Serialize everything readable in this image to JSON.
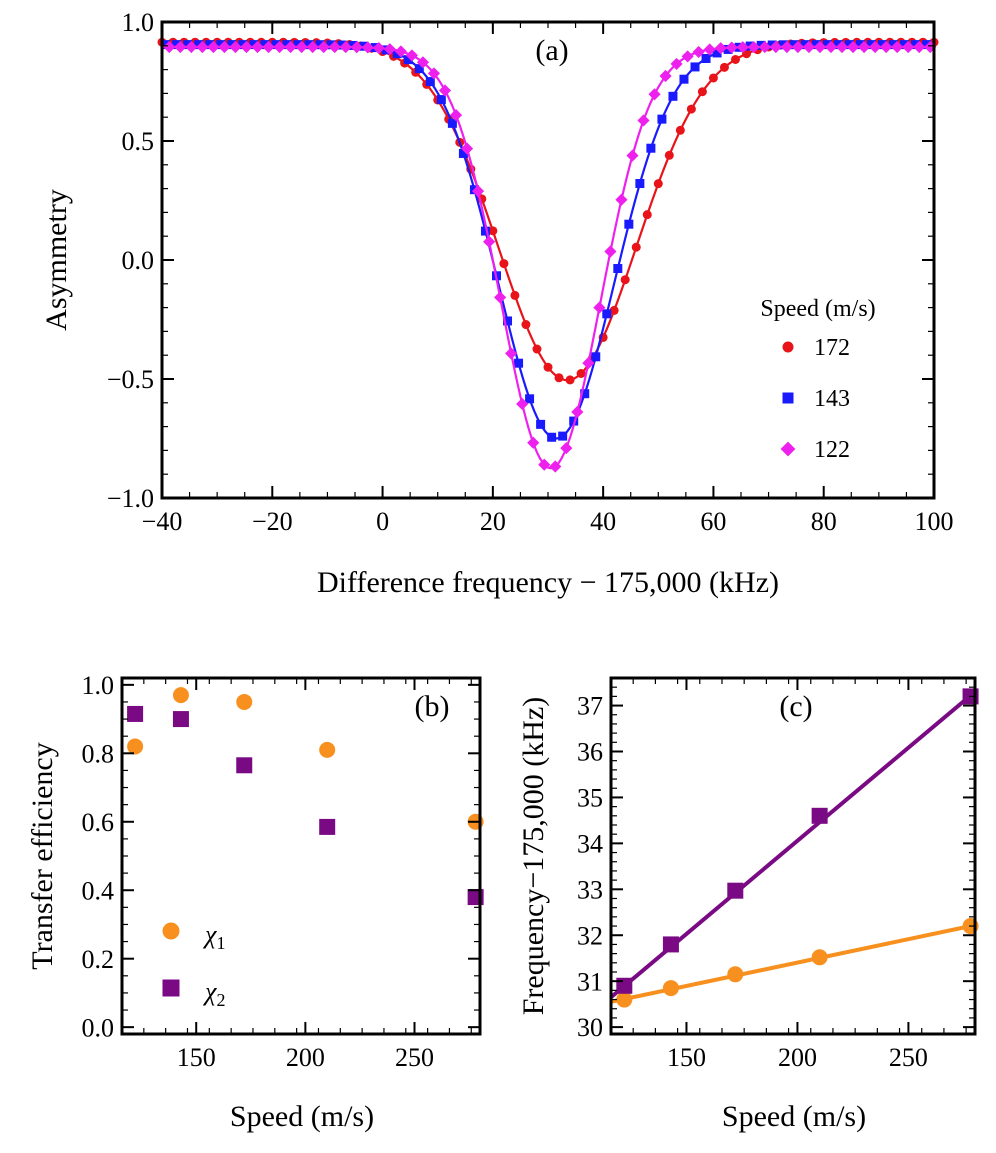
{
  "colors": {
    "red": "#e8141a",
    "blue": "#1a1aff",
    "magenta": "#ee20ee",
    "orange": "#f7901e",
    "purple": "#7a0a84"
  },
  "chart_data": [
    {
      "id": "a",
      "type": "line",
      "panel_label": "(a)",
      "xlabel": "Difference frequency − 175,000 (kHz)",
      "ylabel": "Asymmetry",
      "xlim": [
        -40,
        100
      ],
      "ylim": [
        -1.0,
        1.0
      ],
      "xticks": [
        -40,
        -20,
        0,
        20,
        40,
        60,
        80,
        100
      ],
      "xtick_labels": [
        "−40",
        "−20",
        "0",
        "20",
        "40",
        "60",
        "80",
        "100"
      ],
      "yticks": [
        -1.0,
        -0.5,
        0.0,
        0.5,
        1.0
      ],
      "ytick_labels": [
        "−1.0",
        "−0.5",
        "0.0",
        "0.5",
        "1.0"
      ],
      "legend_title": "Speed (m/s)",
      "legend_position": "right",
      "series": [
        {
          "name": "172",
          "color": "red",
          "marker": "circle",
          "center": 33.5,
          "depth": 1.42,
          "baseline": 0.915,
          "width": 12.5
        },
        {
          "name": "143",
          "color": "blue",
          "marker": "square",
          "center": 31.5,
          "depth": 1.655,
          "baseline": 0.905,
          "width": 10.5
        },
        {
          "name": "122",
          "color": "magenta",
          "marker": "diamond",
          "center": 30.5,
          "depth": 1.77,
          "baseline": 0.895,
          "width": 9.0
        }
      ],
      "point_x_range": [
        -40,
        100
      ],
      "point_step": 2
    },
    {
      "id": "b",
      "type": "scatter",
      "panel_label": "(b)",
      "xlabel": "Speed (m/s)",
      "ylabel": "Transfer efficiency",
      "xlim": [
        116,
        280
      ],
      "ylim": [
        -0.02,
        1.02
      ],
      "xticks": [
        150,
        200,
        250
      ],
      "xtick_labels": [
        "150",
        "200",
        "250"
      ],
      "yticks": [
        0.0,
        0.2,
        0.4,
        0.6,
        0.8,
        1.0
      ],
      "ytick_labels": [
        "0.0",
        "0.2",
        "0.4",
        "0.6",
        "0.8",
        "1.0"
      ],
      "legend_position": "bottom-left",
      "series": [
        {
          "name": "χ",
          "sub": "1",
          "color": "orange",
          "marker": "circle",
          "x": [
            122,
            143,
            172,
            210,
            278
          ],
          "y": [
            0.82,
            0.97,
            0.95,
            0.81,
            0.6
          ]
        },
        {
          "name": "χ",
          "sub": "2",
          "color": "purple",
          "marker": "square",
          "x": [
            122,
            143,
            172,
            210,
            278
          ],
          "y": [
            0.915,
            0.9,
            0.765,
            0.585,
            0.38
          ]
        }
      ]
    },
    {
      "id": "c",
      "type": "scatter",
      "panel_label": "(c)",
      "xlabel": "Speed (m/s)",
      "ylabel": "Frequency−175,000 (kHz)",
      "xlim": [
        116,
        280
      ],
      "ylim": [
        29.85,
        37.6
      ],
      "xticks": [
        150,
        200,
        250
      ],
      "xtick_labels": [
        "150",
        "200",
        "250"
      ],
      "yticks": [
        30,
        31,
        32,
        33,
        34,
        35,
        36,
        37
      ],
      "ytick_labels": [
        "30",
        "31",
        "32",
        "33",
        "34",
        "35",
        "36",
        "37"
      ],
      "series": [
        {
          "name": "χ",
          "sub": "1",
          "color": "orange",
          "marker": "circle",
          "x": [
            122,
            143,
            172,
            210,
            278
          ],
          "y": [
            30.6,
            30.85,
            31.15,
            31.52,
            32.2
          ],
          "fit": [
            [
              116,
              30.55
            ],
            [
              280,
              32.22
            ]
          ]
        },
        {
          "name": "χ",
          "sub": "2",
          "color": "purple",
          "marker": "square",
          "x": [
            122,
            143,
            172,
            210,
            278
          ],
          "y": [
            30.9,
            31.8,
            32.97,
            34.6,
            37.2
          ],
          "fit": [
            [
              116,
              30.65
            ],
            [
              280,
              37.3
            ]
          ]
        }
      ]
    }
  ]
}
